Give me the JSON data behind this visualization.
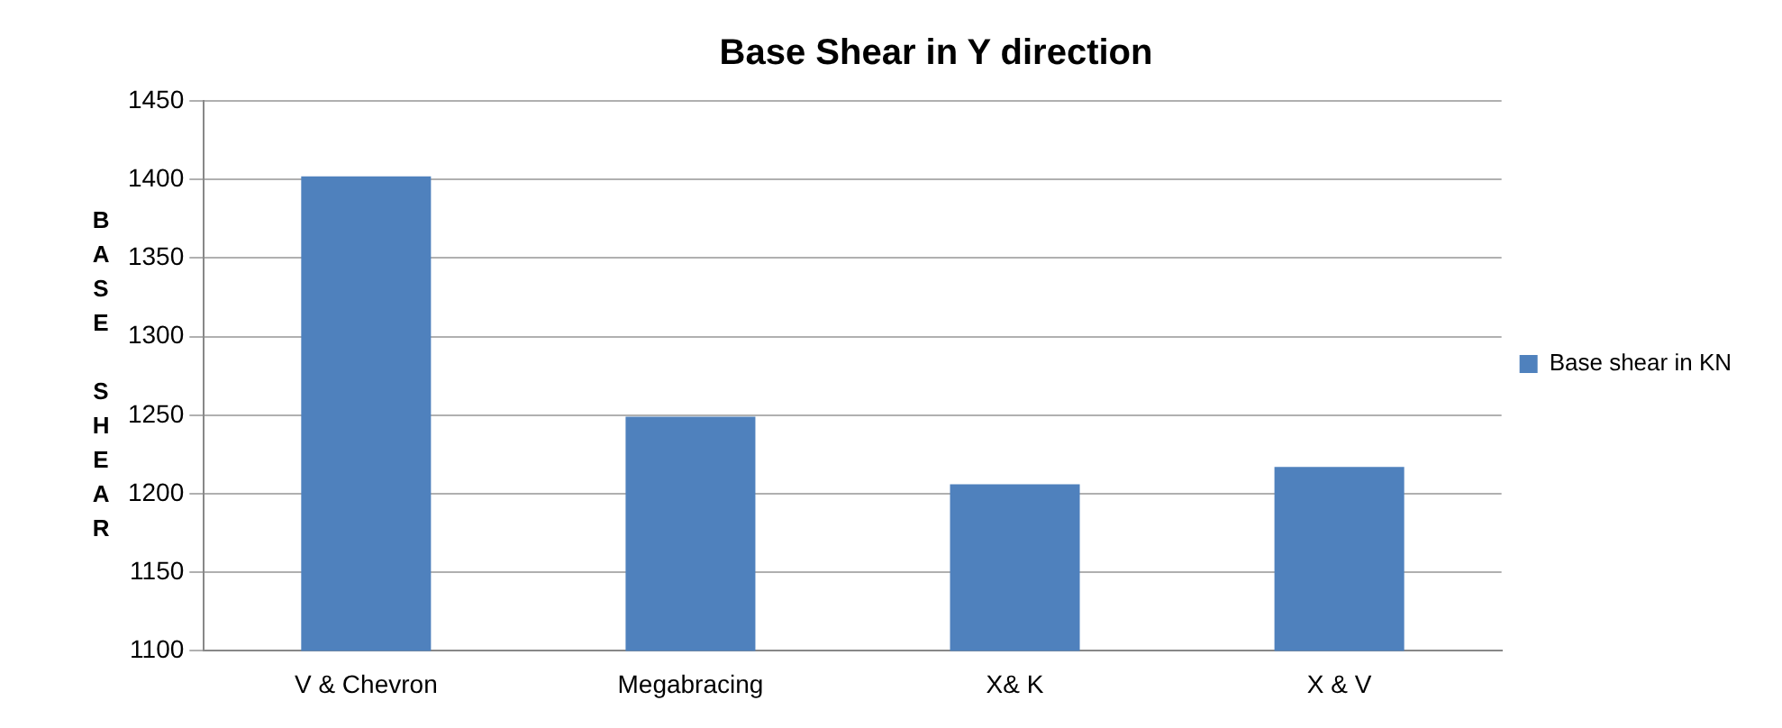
{
  "chart_data": {
    "type": "bar",
    "title": "Base Shear in Y direction",
    "ylabel": "BASE SHEAR",
    "categories": [
      "V & Chevron",
      "Megabracing",
      "X& K",
      "X & V"
    ],
    "series": [
      {
        "name": "Base shear in KN",
        "color": "#4f81bd",
        "values": [
          1402,
          1249,
          1206,
          1217
        ]
      }
    ],
    "ylim": [
      1100,
      1450
    ],
    "yticks": [
      1100,
      1150,
      1200,
      1250,
      1300,
      1350,
      1400,
      1450
    ],
    "grid": "y",
    "legend": "right"
  }
}
